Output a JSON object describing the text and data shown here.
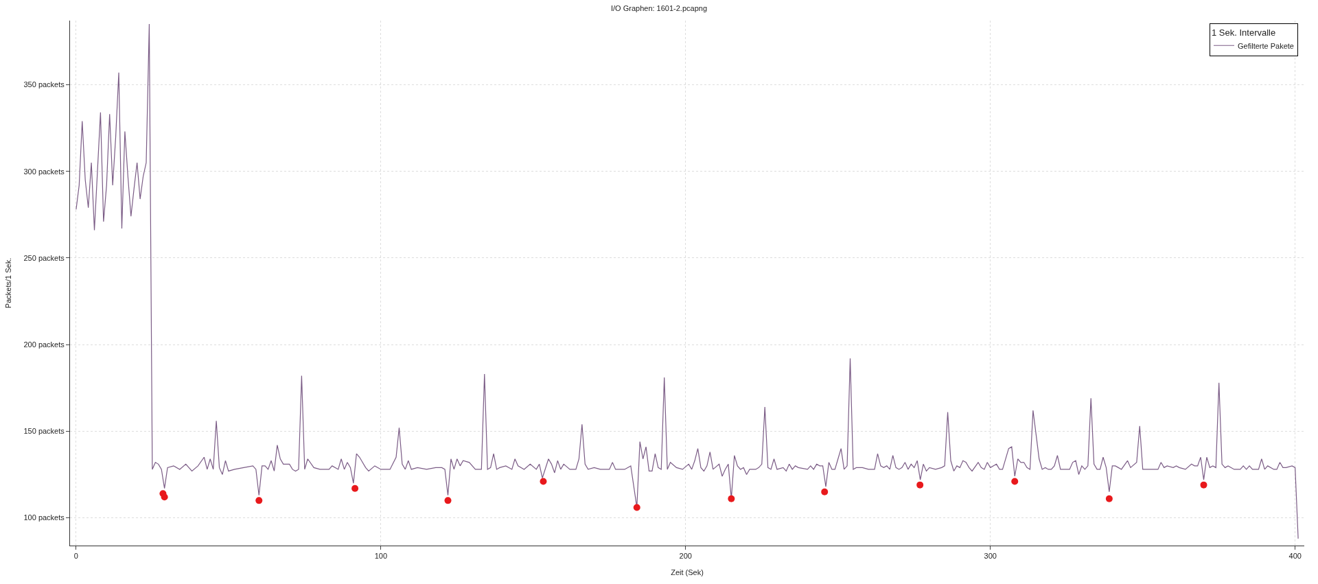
{
  "chart_data": {
    "type": "line",
    "title": "I/O Graphen: 1601-2.pcapng",
    "xlabel": "Zeit (Sek)",
    "ylabel": "Packets/1 Sek.",
    "legend_title": "1 Sek. Intervalle",
    "legend": "top right",
    "grid": true,
    "xlim": [
      -2,
      403
    ],
    "xticks": [
      0,
      100,
      200,
      300,
      400
    ],
    "ylim": [
      84,
      387
    ],
    "yticks": [
      {
        "value": 100,
        "label": "100 packets"
      },
      {
        "value": 150,
        "label": "150 packets"
      },
      {
        "value": 200,
        "label": "200 packets"
      },
      {
        "value": 250,
        "label": "250 packets"
      },
      {
        "value": 300,
        "label": "300 packets"
      },
      {
        "value": 350,
        "label": "350 packets"
      }
    ],
    "series": [
      {
        "name": "Gefilterte Pakete",
        "color": "#7b5c86",
        "marker": "none",
        "line_style": "solid",
        "x": [
          0,
          1,
          2,
          3,
          4,
          5,
          6,
          7,
          8,
          9,
          10,
          11,
          12,
          13,
          14,
          15,
          16,
          17,
          18,
          19,
          20,
          21,
          22,
          23,
          24,
          25,
          26,
          27,
          28,
          29,
          30,
          32,
          34,
          36,
          38,
          40,
          42,
          43,
          44,
          45,
          46,
          47,
          48,
          49,
          50,
          52,
          55,
          58,
          59,
          60,
          61,
          62,
          63,
          64,
          65,
          66,
          67,
          68,
          70,
          71,
          72,
          73,
          74,
          75,
          76,
          78,
          80,
          83,
          84,
          86,
          87,
          88,
          89,
          90,
          91,
          92,
          93,
          95,
          96,
          98,
          100,
          103,
          105,
          106,
          107,
          108,
          109,
          110,
          112,
          115,
          118,
          120,
          121,
          122,
          123,
          124,
          125,
          126,
          127,
          129,
          131,
          133,
          134,
          135,
          136,
          137,
          138,
          139,
          141,
          143,
          144,
          145,
          147,
          149,
          151,
          152,
          153,
          155,
          156,
          157,
          158,
          159,
          160,
          162,
          164,
          165,
          166,
          167,
          168,
          170,
          172,
          175,
          176,
          177,
          180,
          182,
          184,
          185,
          186,
          187,
          188,
          189,
          190,
          191,
          192,
          193,
          194,
          195,
          197,
          199,
          201,
          202,
          203,
          204,
          205,
          206,
          207,
          208,
          209,
          211,
          212,
          213,
          214,
          215,
          216,
          217,
          218,
          219,
          220,
          221,
          223,
          224,
          225,
          226,
          227,
          228,
          229,
          230,
          232,
          233,
          234,
          235,
          236,
          237,
          240,
          241,
          242,
          243,
          244,
          245,
          246,
          247,
          248,
          249,
          250,
          251,
          252,
          253,
          254,
          255,
          256,
          258,
          260,
          262,
          263,
          264,
          265,
          266,
          267,
          268,
          269,
          270,
          271,
          272,
          273,
          274,
          275,
          276,
          277,
          278,
          279,
          280,
          282,
          284,
          285,
          286,
          287,
          288,
          289,
          290,
          291,
          292,
          293,
          294,
          296,
          297,
          298,
          299,
          300,
          302,
          303,
          304,
          306,
          307,
          308,
          309,
          310,
          311,
          312,
          313,
          314,
          315,
          316,
          317,
          318,
          319,
          320,
          321,
          322,
          323,
          325,
          326,
          327,
          328,
          329,
          330,
          331,
          332,
          333,
          334,
          335,
          336,
          337,
          338,
          339,
          340,
          341,
          342,
          343,
          345,
          346,
          348,
          349,
          350,
          352,
          355,
          356,
          357,
          358,
          360,
          361,
          362,
          364,
          366,
          367,
          368,
          369,
          370,
          371,
          372,
          373,
          374,
          375,
          376,
          377,
          378,
          380,
          382,
          383,
          384,
          385,
          386,
          388,
          389,
          390,
          391,
          393,
          394,
          395,
          396,
          397,
          399,
          400,
          401
        ],
        "values": [
          278,
          292,
          329,
          295,
          279,
          305,
          266,
          300,
          334,
          271,
          292,
          333,
          292,
          320,
          357,
          267,
          323,
          297,
          274,
          290,
          305,
          284,
          297,
          305,
          385,
          128,
          132,
          131,
          128,
          117,
          129,
          130,
          128,
          131,
          127,
          130,
          135,
          128,
          134,
          128,
          156,
          129,
          125,
          133,
          127,
          128,
          129,
          130,
          128,
          113,
          130,
          130,
          128,
          133,
          127,
          142,
          134,
          131,
          131,
          128,
          127,
          128,
          182,
          128,
          134,
          129,
          128,
          128,
          130,
          128,
          134,
          128,
          132,
          129,
          120,
          137,
          135,
          129,
          127,
          130,
          128,
          128,
          135,
          152,
          131,
          128,
          133,
          128,
          129,
          128,
          129,
          129,
          128,
          113,
          134,
          128,
          134,
          130,
          133,
          132,
          128,
          128,
          183,
          128,
          129,
          137,
          128,
          129,
          130,
          128,
          134,
          130,
          128,
          131,
          128,
          131,
          123,
          134,
          131,
          126,
          133,
          128,
          131,
          128,
          128,
          134,
          154,
          131,
          128,
          129,
          128,
          128,
          132,
          128,
          128,
          130,
          106,
          144,
          134,
          141,
          127,
          127,
          137,
          129,
          128,
          181,
          128,
          132,
          129,
          128,
          131,
          128,
          133,
          140,
          129,
          127,
          130,
          138,
          128,
          131,
          124,
          128,
          131,
          111,
          136,
          130,
          128,
          129,
          125,
          128,
          128,
          129,
          131,
          164,
          129,
          128,
          134,
          128,
          129,
          127,
          131,
          128,
          130,
          129,
          128,
          130,
          128,
          131,
          130,
          130,
          118,
          132,
          128,
          128,
          134,
          140,
          128,
          130,
          192,
          128,
          129,
          129,
          128,
          128,
          137,
          130,
          129,
          130,
          128,
          136,
          129,
          128,
          129,
          132,
          128,
          131,
          129,
          133,
          122,
          131,
          127,
          129,
          128,
          129,
          130,
          161,
          133,
          127,
          130,
          129,
          133,
          132,
          129,
          127,
          132,
          129,
          128,
          132,
          129,
          131,
          128,
          128,
          140,
          141,
          124,
          134,
          132,
          132,
          129,
          128,
          162,
          148,
          134,
          128,
          129,
          128,
          128,
          130,
          136,
          128,
          128,
          128,
          132,
          133,
          125,
          130,
          128,
          130,
          169,
          131,
          128,
          128,
          135,
          129,
          115,
          130,
          130,
          129,
          128,
          133,
          129,
          132,
          153,
          128,
          128,
          128,
          132,
          129,
          130,
          129,
          130,
          129,
          128,
          131,
          130,
          130,
          135,
          122,
          135,
          129,
          130,
          129,
          178,
          131,
          129,
          130,
          128,
          128,
          130,
          128,
          130,
          128,
          128,
          134,
          128,
          130,
          128,
          128,
          132,
          129,
          129,
          130,
          129,
          88
        ]
      },
      {
        "type": "scatter",
        "color": "#e8191c",
        "marker": "circle",
        "x": [
          28.5,
          29,
          60,
          91.5,
          122,
          153.3,
          184,
          215,
          245.6,
          276.9,
          308,
          339,
          370
        ],
        "values": [
          114,
          112,
          110,
          117,
          110,
          121,
          106,
          111,
          115,
          119,
          121,
          111,
          119
        ]
      }
    ]
  }
}
